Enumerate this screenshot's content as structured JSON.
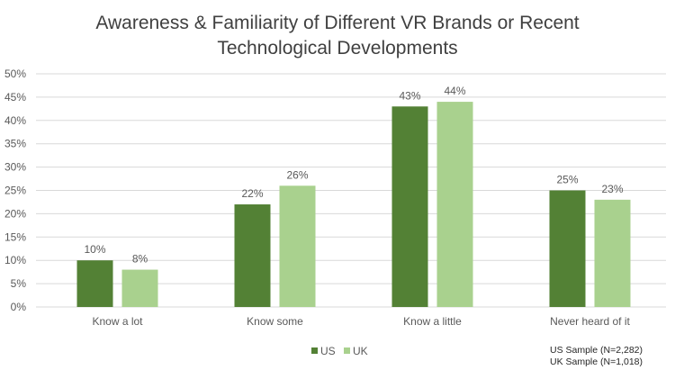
{
  "chart_data": {
    "type": "bar",
    "title_line1": "Awareness & Familiarity of Different VR Brands or Recent",
    "title_line2": "Technological Developments",
    "categories": [
      "Know a lot",
      "Know some",
      "Know a little",
      "Never heard of it"
    ],
    "series": [
      {
        "name": "US",
        "color": "#538135",
        "values": [
          10,
          22,
          43,
          25
        ]
      },
      {
        "name": "UK",
        "color": "#A9D18E",
        "values": [
          8,
          26,
          44,
          23
        ]
      }
    ],
    "ylim": [
      0,
      50
    ],
    "yticks": [
      "0%",
      "5%",
      "10%",
      "15%",
      "20%",
      "25%",
      "30%",
      "35%",
      "40%",
      "45%",
      "50%"
    ],
    "grid": true,
    "legend": "bottom-center",
    "notes": [
      "US Sample (N=2,282)",
      "UK Sample (N=1,018)"
    ]
  }
}
